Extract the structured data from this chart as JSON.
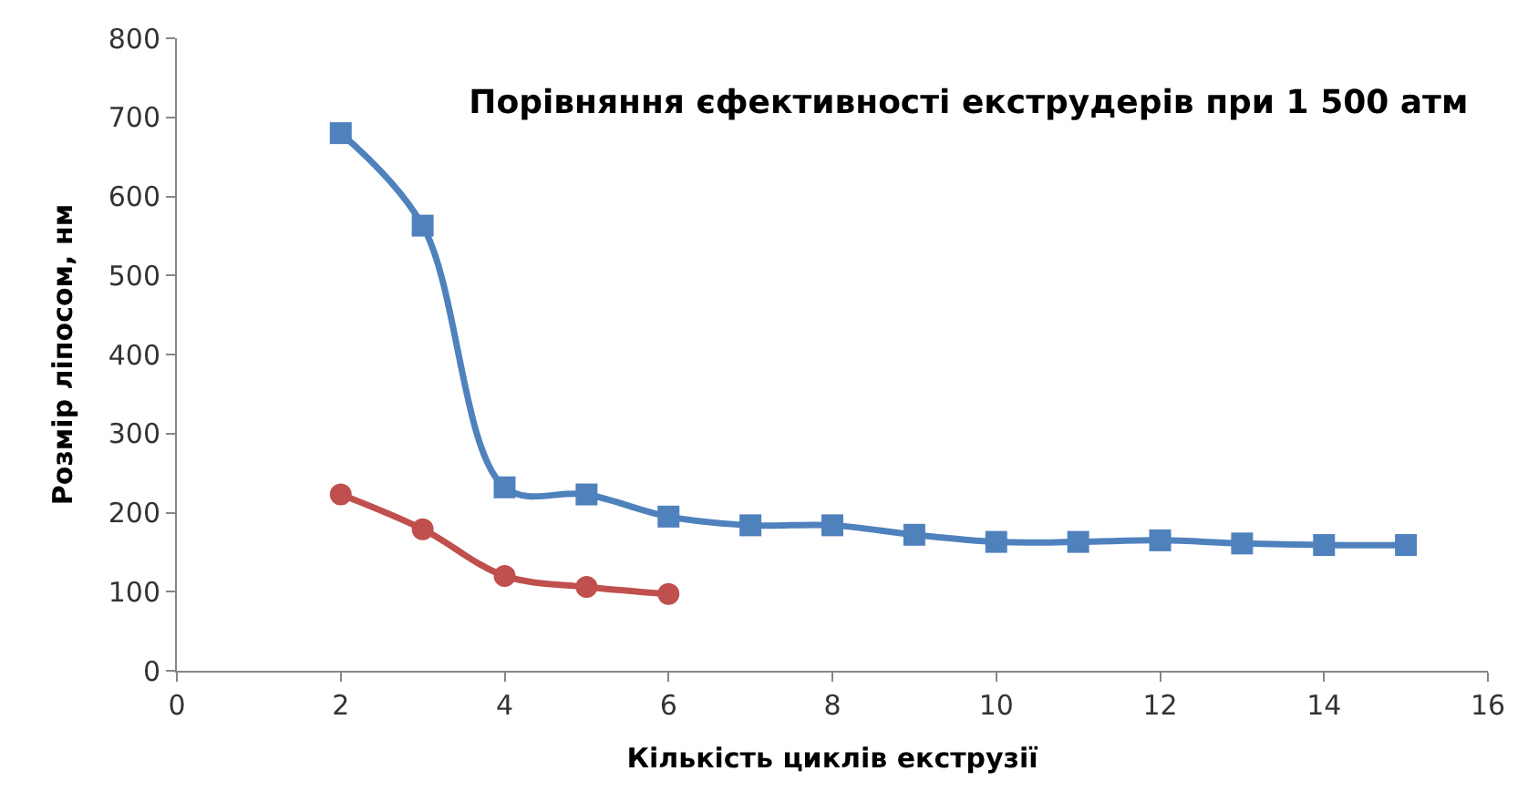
{
  "chart_data": {
    "type": "line",
    "title": "Порівняння єфективності екструдерів при 1 500 атм",
    "xlabel": "Кількість циклів екструзії",
    "ylabel": "Розмір ліпосом, нм",
    "series": [
      {
        "color": "#4f81bd",
        "marker": "square",
        "x": [
          2,
          3,
          4,
          5,
          6,
          7,
          8,
          9,
          10,
          11,
          12,
          13,
          14,
          15
        ],
        "values": [
          680,
          563,
          232,
          223,
          195,
          184,
          184,
          172,
          163,
          163,
          165,
          161,
          159,
          159
        ]
      },
      {
        "color": "#c0504d",
        "marker": "circle",
        "x": [
          2,
          3,
          4,
          5,
          6
        ],
        "values": [
          223,
          179,
          120,
          106,
          97
        ]
      }
    ],
    "xlim": [
      0,
      16
    ],
    "xticks": [
      0,
      2,
      4,
      6,
      8,
      10,
      12,
      14,
      16
    ],
    "ylim": [
      0,
      800
    ],
    "yticks": [
      0,
      100,
      200,
      300,
      400,
      500,
      600,
      700,
      800
    ]
  }
}
